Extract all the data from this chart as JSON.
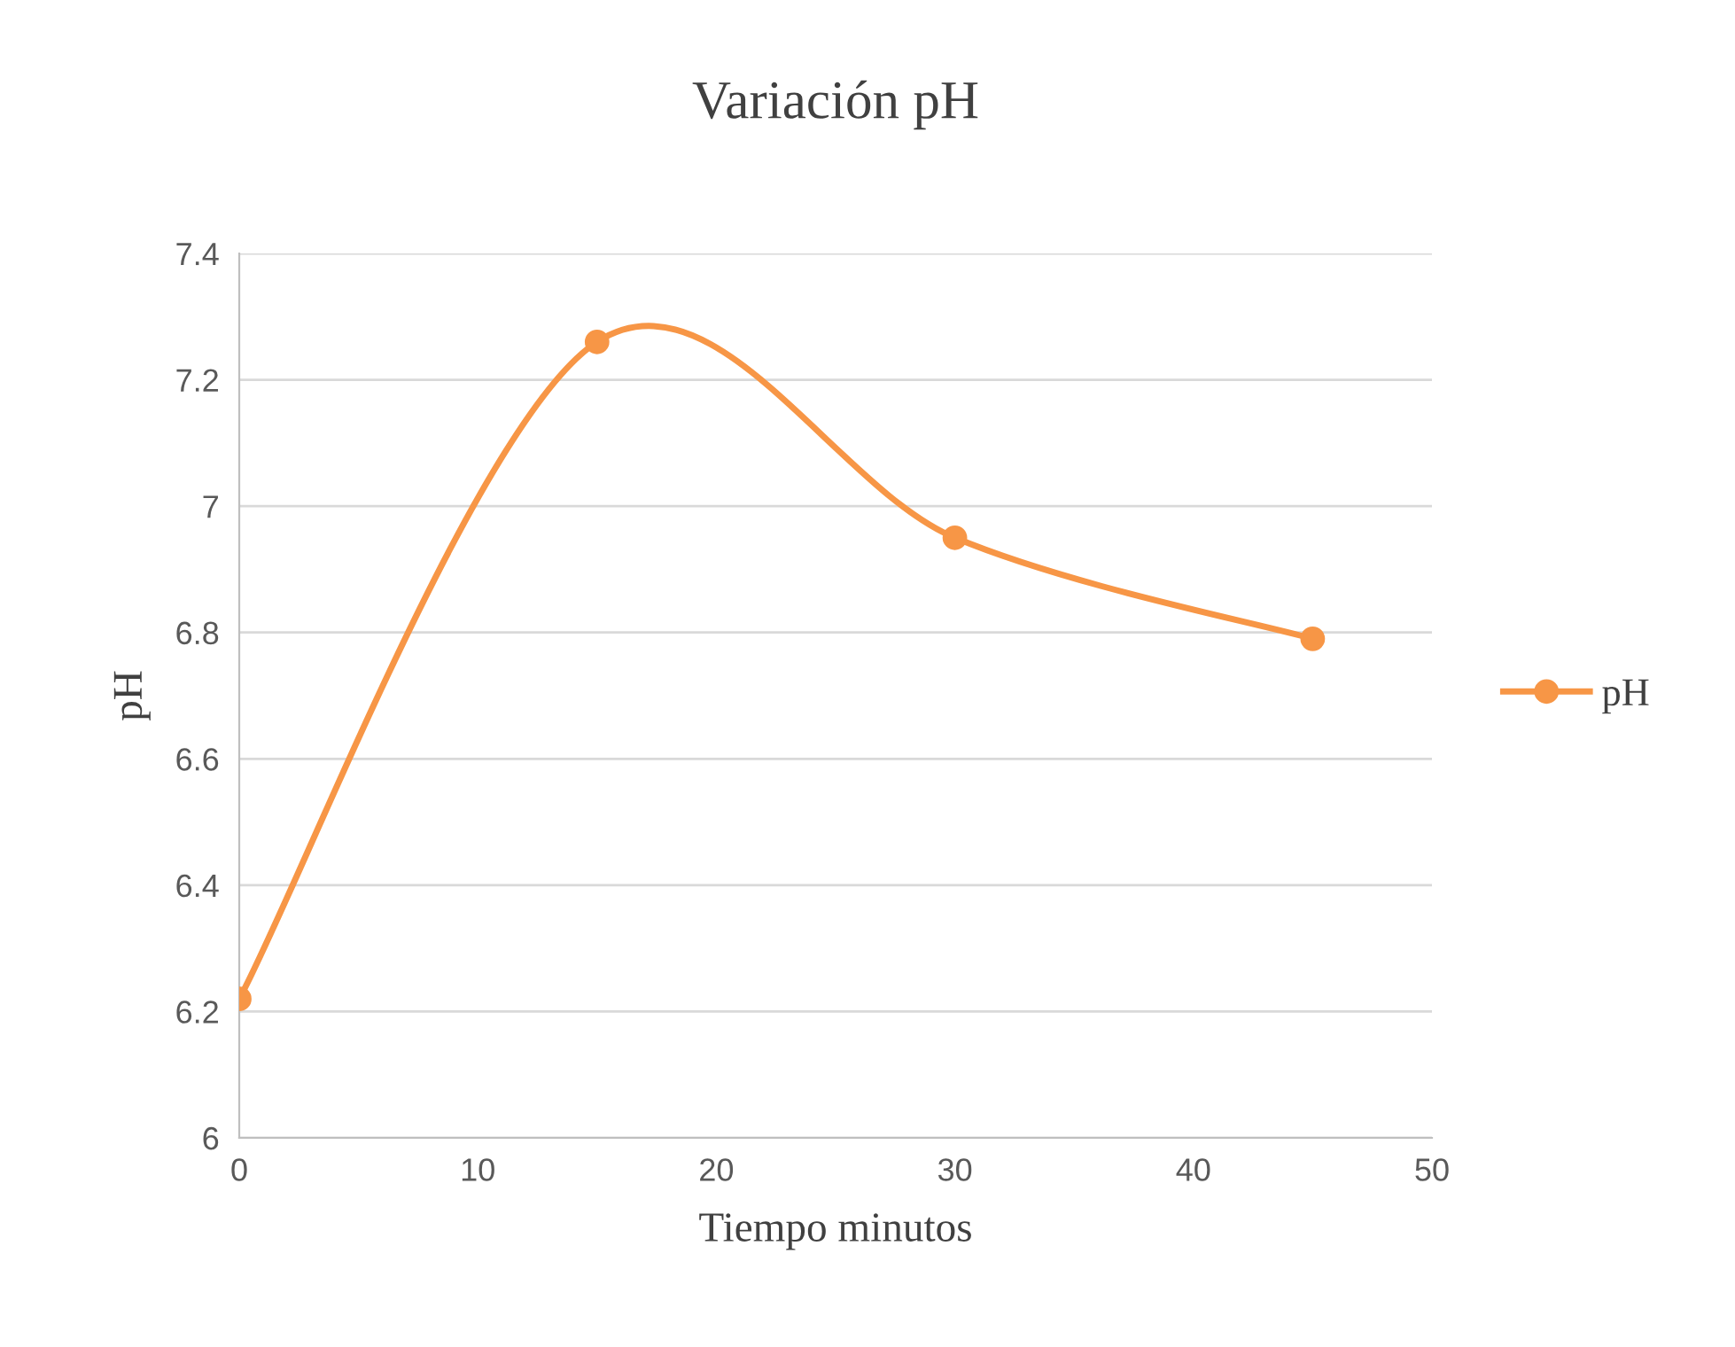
{
  "chart_data": {
    "type": "line",
    "title": "Variación pH",
    "xlabel": "Tiempo minutos",
    "ylabel": "pH",
    "x": [
      0,
      15,
      30,
      45
    ],
    "series": [
      {
        "name": "pH",
        "color": "#f79646",
        "values": [
          6.22,
          7.26,
          6.95,
          6.79
        ]
      }
    ],
    "xlim": [
      0,
      50
    ],
    "xticks": [
      0,
      10,
      20,
      30,
      40,
      50
    ],
    "ylim": [
      6,
      7.4
    ],
    "yticks": [
      6,
      6.2,
      6.4,
      6.6,
      6.8,
      7,
      7.2,
      7.4
    ],
    "grid": "y",
    "legend": "right",
    "marker": "circle",
    "line_style": "solid"
  }
}
